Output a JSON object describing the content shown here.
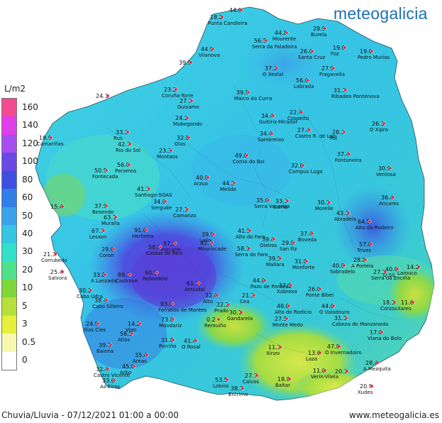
{
  "brand": "meteogalicia",
  "legend": {
    "title": "L/m2",
    "items": [
      {
        "label": "160",
        "color": "#f24b8f"
      },
      {
        "label": "140",
        "color": "#e03ee8"
      },
      {
        "label": "120",
        "color": "#a64ef0"
      },
      {
        "label": "100",
        "color": "#6b49e6"
      },
      {
        "label": "80",
        "color": "#3d4fe0"
      },
      {
        "label": "60",
        "color": "#2f7fe6"
      },
      {
        "label": "50",
        "color": "#3aa3ec"
      },
      {
        "label": "40",
        "color": "#35c6e3"
      },
      {
        "label": "30",
        "color": "#33e0c9"
      },
      {
        "label": "20",
        "color": "#4fe08a"
      },
      {
        "label": "10",
        "color": "#7dd63a"
      },
      {
        "label": "5",
        "color": "#b7e03a"
      },
      {
        "label": "3",
        "color": "#e6ef3a"
      },
      {
        "label": "0.5",
        "color": "#f6f8b0"
      },
      {
        "label": "0",
        "color": "#ffffff"
      }
    ]
  },
  "footer": {
    "caption": "Chuvia/Lluvia - 07/12/2021 01:00 a 00:00",
    "website": "www.meteogalicia.es"
  },
  "stations": [
    {
      "value": "44.0",
      "name": ""
    },
    {
      "value": "18.2",
      "name": "Punta Candieira"
    },
    {
      "value": "56.5",
      "name": "Serra da Faladoira"
    },
    {
      "value": "44.8",
      "name": "Mourente"
    },
    {
      "value": "28.9",
      "name": "Burela"
    },
    {
      "value": "44.9",
      "name": "Vilanova"
    },
    {
      "value": "26.0",
      "name": "Santa Cruz"
    },
    {
      "value": "19.0",
      "name": "Foz"
    },
    {
      "value": "19.0",
      "name": "Pedro Murias"
    },
    {
      "value": "39.9",
      "name": ""
    },
    {
      "value": "37.2",
      "name": "O Xestal"
    },
    {
      "value": "27.9",
      "name": "Fragavella"
    },
    {
      "value": "56.0",
      "name": "Labrada"
    },
    {
      "value": "23.2",
      "name": "Coruña-Torre"
    },
    {
      "value": "31.7",
      "name": "Ribadeo Pontenova"
    },
    {
      "value": "24.1",
      "name": ""
    },
    {
      "value": "39.9",
      "name": "Marco da Curra"
    },
    {
      "value": "27.3",
      "name": "Guisamo"
    },
    {
      "value": "24.2",
      "name": "Mabegondo"
    },
    {
      "value": "34.4",
      "name": "Guitiriz-Mirador"
    },
    {
      "value": "22.4",
      "name": "Cospeito"
    },
    {
      "value": "33.3",
      "name": "Rus"
    },
    {
      "value": "32.8",
      "name": "Olas"
    },
    {
      "value": "34.4",
      "name": "Sambreixo"
    },
    {
      "value": "27.4",
      "name": "Castro R. de Lea"
    },
    {
      "value": "28.3",
      "name": "Pol"
    },
    {
      "value": "26.1",
      "name": "O Xipro"
    },
    {
      "value": "19.9",
      "name": "Camariñas"
    },
    {
      "value": "42.7",
      "name": "Rio do Sol"
    },
    {
      "value": "23.3",
      "name": "Montaos"
    },
    {
      "value": "49.0",
      "name": "Corno do Boi"
    },
    {
      "value": "37.4",
      "name": "Fontaneira"
    },
    {
      "value": "50.5",
      "name": "Fontecada"
    },
    {
      "value": "56.0",
      "name": "Paramos"
    },
    {
      "value": "32.0",
      "name": "Campus Lugo"
    },
    {
      "value": "30.9",
      "name": "Ventosa"
    },
    {
      "value": "40.0",
      "name": "Arzua"
    },
    {
      "value": "44.3",
      "name": "Melide"
    },
    {
      "value": "41.3",
      "name": "Santiago-SOAS"
    },
    {
      "value": "36.4",
      "name": "Ancares"
    },
    {
      "value": "34.0",
      "name": "Sergude"
    },
    {
      "value": "35.0",
      "name": "Serra Vacariza"
    },
    {
      "value": "33.3",
      "name": "Sarria"
    },
    {
      "value": "30.1",
      "name": "Morelle"
    },
    {
      "value": "15.4",
      "name": ""
    },
    {
      "value": "37.9",
      "name": "Besende"
    },
    {
      "value": "27.1",
      "name": "Camanzo"
    },
    {
      "value": "43.1",
      "name": "Abradelo"
    },
    {
      "value": "63.1",
      "name": "Muralla"
    },
    {
      "value": "91.6",
      "name": "Herbeira"
    },
    {
      "value": "64.5",
      "name": "Alto do Rodeiro"
    },
    {
      "value": "67.7",
      "name": "Lesxon"
    },
    {
      "value": "39.9",
      "name": "Lalin"
    },
    {
      "value": "41.5",
      "name": "Alto do Faro"
    },
    {
      "value": "39.4",
      "name": "Oleiros"
    },
    {
      "value": "37.4",
      "name": "Boveda"
    },
    {
      "value": "97.3",
      "name": "Forcarei"
    },
    {
      "value": "58.9",
      "name": "Caldas de Reis"
    },
    {
      "value": "42.7",
      "name": "Mouriscade"
    },
    {
      "value": "58.1",
      "name": "Serra do Faro"
    },
    {
      "value": "29.8",
      "name": "San Fiz"
    },
    {
      "value": "57.6",
      "name": "Trives"
    },
    {
      "value": "21.3",
      "name": "Corrubedo"
    },
    {
      "value": "29.6",
      "name": "Coron"
    },
    {
      "value": "39.5",
      "name": "Mallara"
    },
    {
      "value": "31.8",
      "name": "Monforte"
    },
    {
      "value": "40.8",
      "name": "Sobradelo"
    },
    {
      "value": "25.4",
      "name": "Salvora"
    },
    {
      "value": "33.8",
      "name": "A Lanzada"
    },
    {
      "value": "88.7",
      "name": "Castrove"
    },
    {
      "value": "90.5",
      "name": "Rebordelo"
    },
    {
      "value": "61.3",
      "name": "Amiudal"
    },
    {
      "value": "44.0",
      "name": "Pazo de Ponteda"
    },
    {
      "value": "37.5",
      "name": "Xabrexa"
    },
    {
      "value": "26.0",
      "name": "Ponte Bibei"
    },
    {
      "value": "28.8",
      "name": "A Portela"
    },
    {
      "value": "40.6",
      "name": "O Sil"
    },
    {
      "value": "30.2",
      "name": "Cabo Udra"
    },
    {
      "value": "32.4",
      "name": "Alto"
    },
    {
      "value": "21.3",
      "name": "Cea"
    },
    {
      "value": "27.3",
      "name": "Serra da Enciña"
    },
    {
      "value": "14.2",
      "name": "Larouco"
    },
    {
      "value": "38.4",
      "name": "Cabo Silleiro"
    },
    {
      "value": "22.2",
      "name": "Prado"
    },
    {
      "value": "46.0",
      "name": "Alto do Rodicio"
    },
    {
      "value": "44.0",
      "name": "O Valadouro"
    },
    {
      "value": "93.0",
      "name": "Fornelos de Montes"
    },
    {
      "value": "31.1",
      "name": "Cabeza de Manzaneda"
    },
    {
      "value": "24.9",
      "name": "Illas Cies"
    },
    {
      "value": "14.2",
      "name": "Vigo"
    },
    {
      "value": "73.8",
      "name": "Mondariz"
    },
    {
      "value": "0.2",
      "name": "Remuiño"
    },
    {
      "value": "30.1",
      "name": "Gandarela"
    },
    {
      "value": "27.5",
      "name": "Monte Medo"
    },
    {
      "value": "18.1",
      "name": "Corzos"
    },
    {
      "value": "11.6",
      "name": "Xares"
    },
    {
      "value": "17.0",
      "name": "Viana do Bolo"
    },
    {
      "value": "39.1",
      "name": "Baiona"
    },
    {
      "value": "58.5",
      "name": "Atios"
    },
    {
      "value": "31.8",
      "name": "Porriño"
    },
    {
      "value": "41.4",
      "name": "O Rosal"
    },
    {
      "value": "47.8",
      "name": "O Invernadoiro"
    },
    {
      "value": "35.4",
      "name": "Areas"
    },
    {
      "value": "11.3",
      "name": "Xinzo"
    },
    {
      "value": "13.6",
      "name": "Laza"
    },
    {
      "value": "28.4",
      "name": "A Mezquita"
    },
    {
      "value": "45.0",
      "name": "Arbo"
    },
    {
      "value": "32.4",
      "name": "Castro Vicente"
    },
    {
      "value": "33.6",
      "name": "As Eiras"
    },
    {
      "value": "11.0",
      "name": "Verin-Vilela"
    },
    {
      "value": "20.3",
      "name": ""
    },
    {
      "value": "27.7",
      "name": "Calvos"
    },
    {
      "value": "18.8",
      "name": "Baltar"
    },
    {
      "value": "53.5",
      "name": "Lobios"
    },
    {
      "value": "38.7",
      "name": "Entrimo"
    },
    {
      "value": "20.9",
      "name": "Xudes"
    }
  ]
}
